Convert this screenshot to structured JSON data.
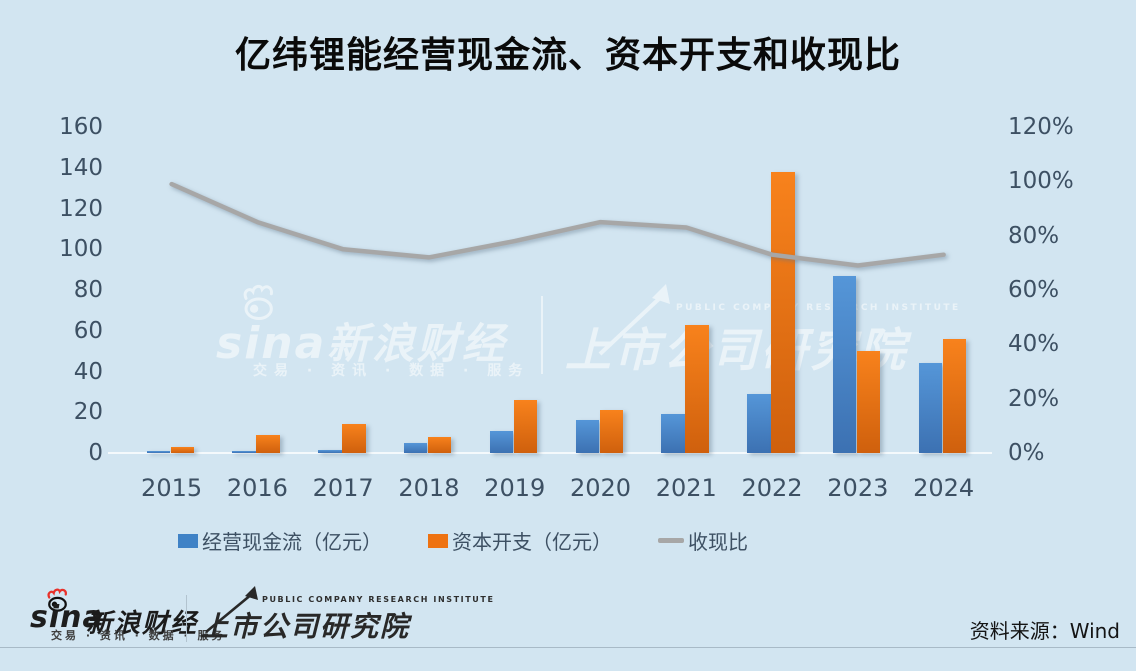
{
  "title": "亿纬锂能经营现金流、资本开支和收现比",
  "colors": {
    "background": "#d2e5f1",
    "bar_blue": "#3f82c6",
    "bar_orange": "#ee7211",
    "line_gray": "#a7a7a7",
    "axis_text": "#3d5063",
    "title_text": "#0a0a0a",
    "sina_red": "#e8312a"
  },
  "chart_data": {
    "type": "bar",
    "subtype": "combo-bar-line-dual-axis",
    "title": "亿纬锂能经营现金流、资本开支和收现比",
    "categories": [
      "2015",
      "2016",
      "2017",
      "2018",
      "2019",
      "2020",
      "2021",
      "2022",
      "2023",
      "2024"
    ],
    "series": [
      {
        "key": "operating-cashflow",
        "name": "经营现金流（亿元）",
        "type": "bar",
        "axis": "left",
        "color": "#3f82c6",
        "values": [
          1,
          1,
          1.5,
          5,
          11,
          16,
          19,
          29,
          87,
          44
        ]
      },
      {
        "key": "capex",
        "name": "资本开支（亿元）",
        "type": "bar",
        "axis": "left",
        "color": "#ee7211",
        "values": [
          3,
          9,
          14,
          8,
          26,
          21,
          63,
          138,
          50,
          56
        ]
      },
      {
        "key": "cash-ratio",
        "name": "收现比",
        "type": "line",
        "axis": "right",
        "color": "#a7a7a7",
        "unit": "%",
        "values": [
          99,
          85,
          75,
          72,
          78,
          85,
          83,
          73,
          69,
          73
        ]
      }
    ],
    "left_axis": {
      "min": 0,
      "max": 160,
      "step": 20,
      "tick_labels": [
        "160",
        "140",
        "120",
        "100",
        "80",
        "60",
        "40",
        "20",
        "0"
      ]
    },
    "right_axis": {
      "min": 0,
      "max": 120,
      "step": 20,
      "unit": "%",
      "tick_labels": [
        "120%",
        "100%",
        "80%",
        "60%",
        "40%",
        "20%",
        "0%"
      ]
    },
    "grid": false,
    "legend_position": "bottom"
  },
  "legend": {
    "items": [
      {
        "label": "经营现金流（亿元）",
        "swatch": "bar",
        "color": "#3f82c6"
      },
      {
        "label": "资本开支（亿元）",
        "swatch": "bar",
        "color": "#ee7211"
      },
      {
        "label": "收现比",
        "swatch": "line",
        "color": "#a7a7a7"
      }
    ]
  },
  "watermark": {
    "sina": "sina",
    "sina_cn": "新浪财经",
    "tagline": "交易 · 资讯 · 数据 · 服务",
    "institute_cn": "上市公司研究院",
    "institute_en": "PUBLIC COMPANY RESEARCH INSTITUTE"
  },
  "footer": {
    "sina": "sina",
    "sina_cn": "新浪财经",
    "tagline": "交易 · 资讯 · 数据 · 服务",
    "institute_cn": "上市公司研究院",
    "institute_en": "PUBLIC COMPANY RESEARCH INSTITUTE",
    "source": "资料来源：Wind"
  }
}
